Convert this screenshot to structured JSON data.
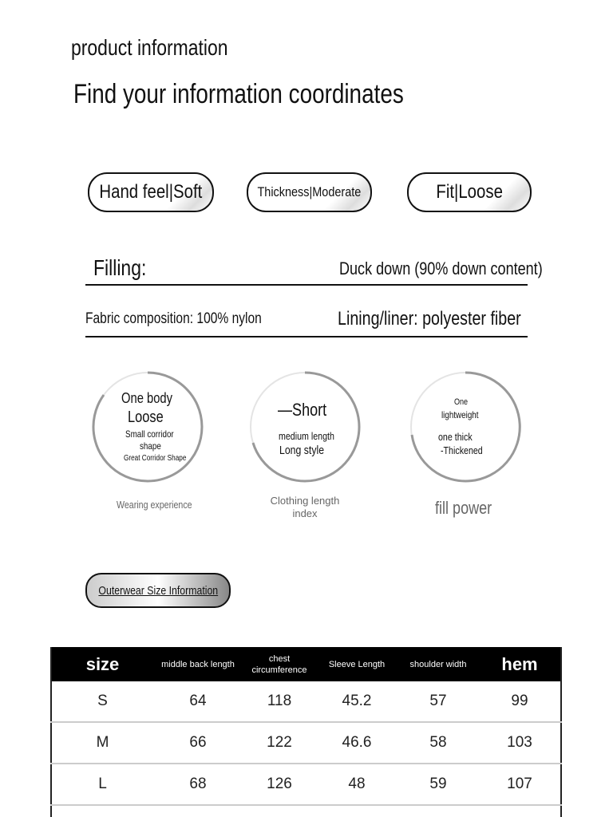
{
  "header": {
    "section": "product information",
    "title": "Find your information coordinates"
  },
  "pills": [
    "Hand feel|Soft",
    "Thickness|Moderate",
    "Fit|Loose"
  ],
  "filling": {
    "label": "Filling:",
    "value": "Duck down (90% down content)"
  },
  "fabric": {
    "composition": "Fabric composition: 100% nylon",
    "lining": "Lining/liner: polyester fiber"
  },
  "gauges": [
    {
      "lines": [
        "One body",
        "Loose",
        "Small corridor",
        "shape",
        "Great Corridor Shape"
      ],
      "caption": "Wearing experience"
    },
    {
      "lines": [
        "—Short",
        "medium length",
        "Long style"
      ],
      "caption": "Clothing length index"
    },
    {
      "lines": [
        "One",
        "lightweight",
        "one thick",
        "-Thickened"
      ],
      "caption": "fill power"
    }
  ],
  "size_button": "Outerwear Size Information",
  "size_table": {
    "headers": [
      "size",
      "middle back length",
      "chest circumference",
      "Sleeve Length",
      "shoulder width",
      "hem"
    ],
    "rows": [
      [
        "S",
        "64",
        "118",
        "45.2",
        "57",
        "99"
      ],
      [
        "M",
        "66",
        "122",
        "46.6",
        "58",
        "103"
      ],
      [
        "L",
        "68",
        "126",
        "48",
        "59",
        "107"
      ]
    ]
  }
}
